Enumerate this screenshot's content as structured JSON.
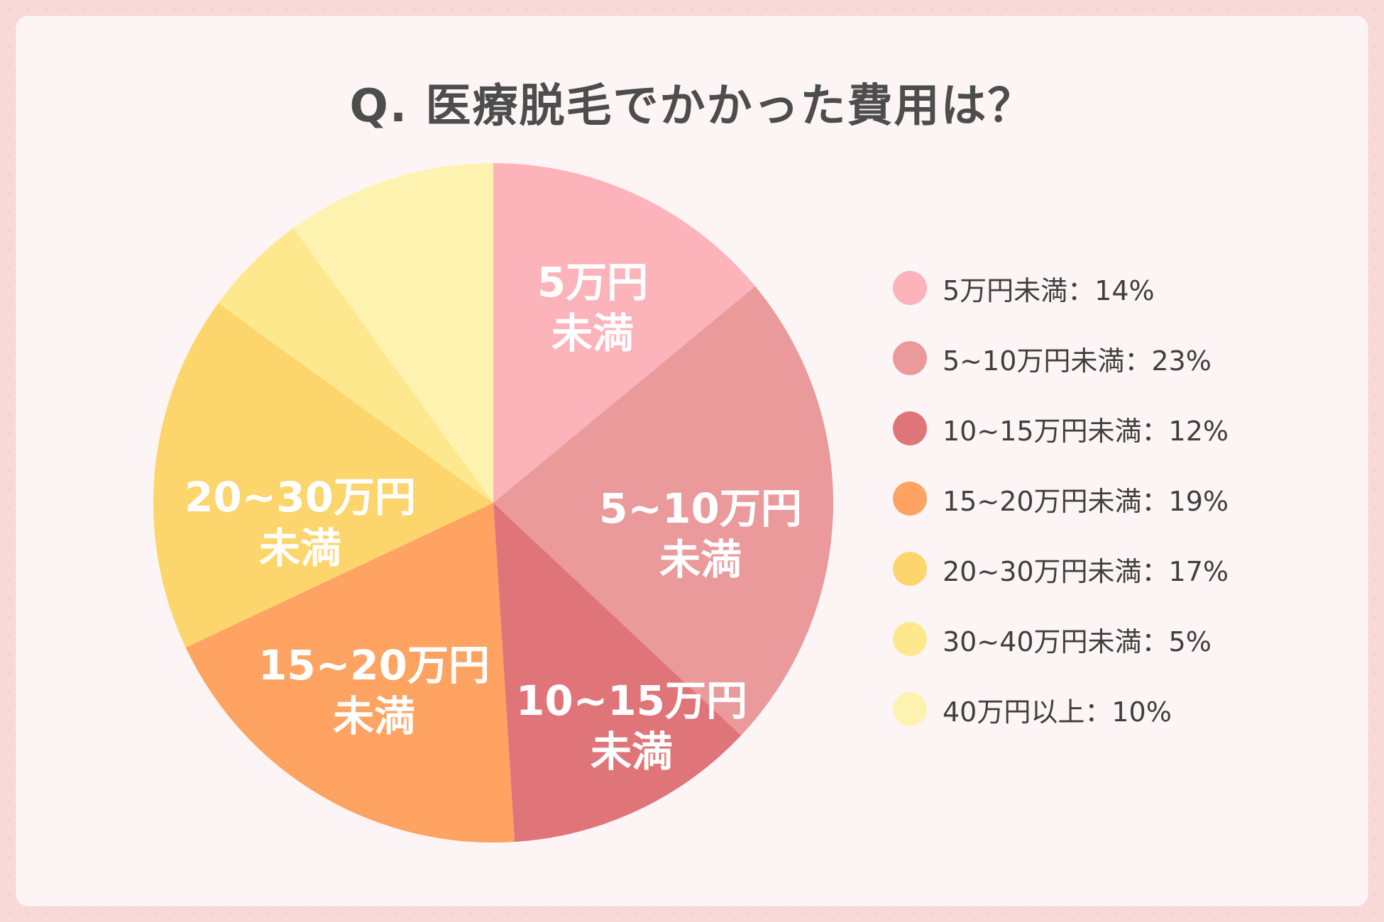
{
  "title": "Q. 医療脱毛でかかった費用は？",
  "chart_data": {
    "type": "pie",
    "title": "Q. 医療脱毛でかかった費用は？",
    "start": "12 o'clock, clockwise",
    "slices": [
      {
        "legend": "5万円未満：14%",
        "value": 14,
        "color": "#fcb3ba",
        "label": [
          "5万円",
          "未満"
        ]
      },
      {
        "legend": "5~10万円未満：23%",
        "value": 23,
        "color": "#ea9a9b",
        "label": [
          "5~10万円",
          "未満"
        ]
      },
      {
        "legend": "10~15万円未満：12%",
        "value": 12,
        "color": "#e07579",
        "label": [
          "10~15万円",
          "未満"
        ]
      },
      {
        "legend": "15~20万円未満：19%",
        "value": 19,
        "color": "#fea362",
        "label": [
          "15~20万円",
          "未満"
        ]
      },
      {
        "legend": "20~30万円未満：17%",
        "value": 17,
        "color": "#fdd56d",
        "label": [
          "20~30万円",
          "未満"
        ]
      },
      {
        "legend": "30~40万円未満：5%",
        "value": 5,
        "color": "#fee88e",
        "label": null
      },
      {
        "legend": "40万円以上：10%",
        "value": 10,
        "color": "#fef2b0",
        "label": null
      }
    ]
  }
}
